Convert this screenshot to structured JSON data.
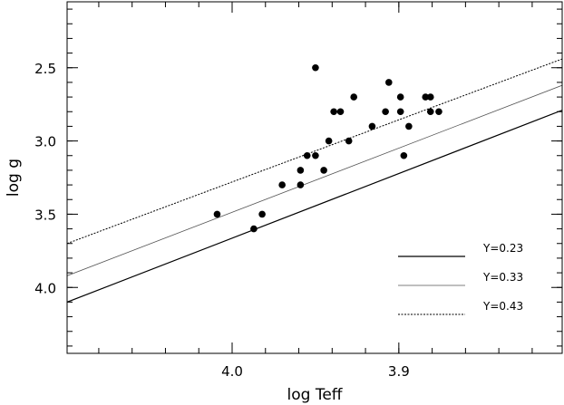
{
  "chart_data": {
    "type": "scatter",
    "xlabel": "log Teff",
    "ylabel": "log g",
    "x_reversed": true,
    "y_reversed": true,
    "xlim": [
      4.099,
      3.802
    ],
    "ylim": [
      4.45,
      2.05
    ],
    "x_ticks": [
      {
        "value": 4.0,
        "label": "4.0"
      },
      {
        "value": 3.9,
        "label": "3.9"
      }
    ],
    "x_minor_step": 0.02,
    "y_ticks": [
      {
        "value": 2.5,
        "label": "2.5"
      },
      {
        "value": 3.0,
        "label": "3.0"
      },
      {
        "value": 3.5,
        "label": "3.5"
      },
      {
        "value": 4.0,
        "label": "4.0"
      }
    ],
    "y_minor_step": 0.1,
    "points": [
      {
        "x": 4.009,
        "y": 3.5
      },
      {
        "x": 3.987,
        "y": 3.6
      },
      {
        "x": 3.982,
        "y": 3.5
      },
      {
        "x": 3.97,
        "y": 3.3
      },
      {
        "x": 3.959,
        "y": 3.3
      },
      {
        "x": 3.959,
        "y": 3.2
      },
      {
        "x": 3.955,
        "y": 3.1
      },
      {
        "x": 3.95,
        "y": 3.1
      },
      {
        "x": 3.95,
        "y": 2.5
      },
      {
        "x": 3.945,
        "y": 3.2
      },
      {
        "x": 3.942,
        "y": 3.0
      },
      {
        "x": 3.939,
        "y": 2.8
      },
      {
        "x": 3.935,
        "y": 2.8
      },
      {
        "x": 3.93,
        "y": 3.0
      },
      {
        "x": 3.927,
        "y": 2.7
      },
      {
        "x": 3.916,
        "y": 2.9
      },
      {
        "x": 3.908,
        "y": 2.8
      },
      {
        "x": 3.906,
        "y": 2.6
      },
      {
        "x": 3.899,
        "y": 2.8
      },
      {
        "x": 3.899,
        "y": 2.7
      },
      {
        "x": 3.897,
        "y": 3.1
      },
      {
        "x": 3.894,
        "y": 2.9
      },
      {
        "x": 3.884,
        "y": 2.7
      },
      {
        "x": 3.881,
        "y": 2.8
      },
      {
        "x": 3.881,
        "y": 2.7
      },
      {
        "x": 3.876,
        "y": 2.8
      }
    ],
    "series": [
      {
        "name": "Y=0.23",
        "style": "solid",
        "color": "#000000",
        "x": [
          4.099,
          3.802
        ],
        "y": [
          4.1,
          2.79
        ]
      },
      {
        "name": "Y=0.33",
        "style": "thin",
        "color": "#555555",
        "x": [
          4.099,
          3.802
        ],
        "y": [
          3.92,
          2.62
        ]
      },
      {
        "name": "Y=0.43",
        "style": "dotted",
        "color": "#000000",
        "x": [
          4.099,
          3.802
        ],
        "y": [
          3.7,
          2.44
        ]
      }
    ],
    "legend_position": "bottom-right",
    "grid": false
  }
}
